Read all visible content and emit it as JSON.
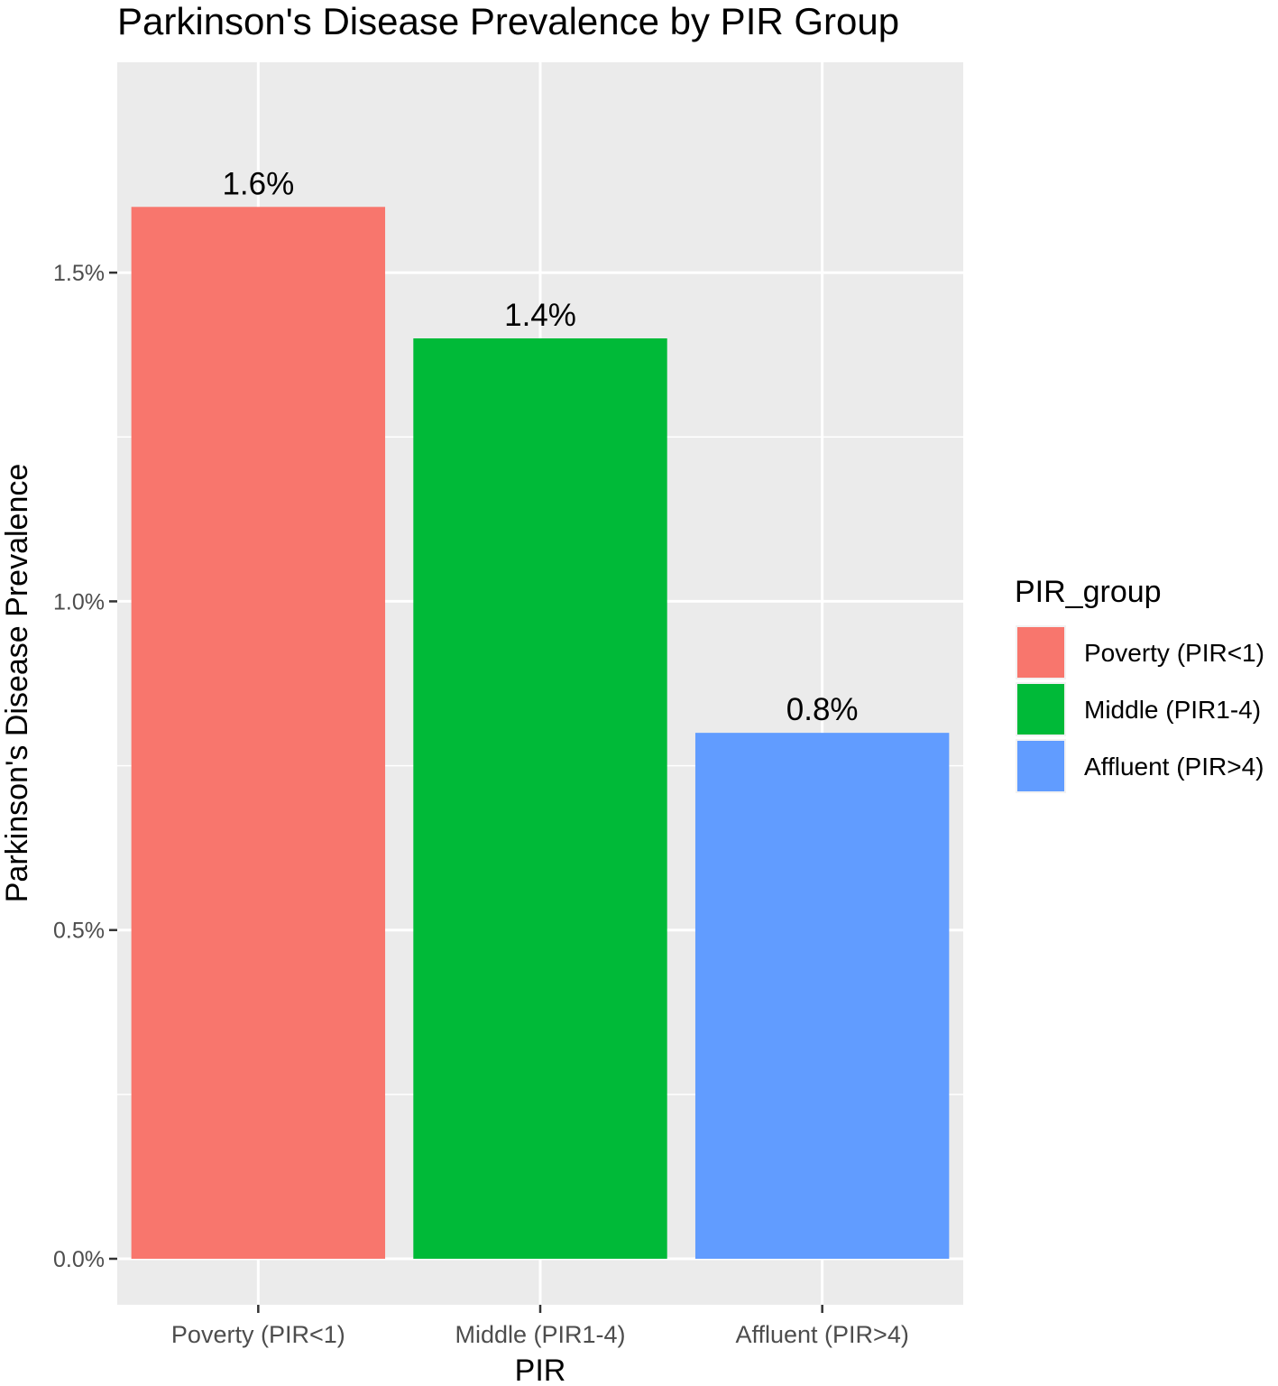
{
  "chart_data": {
    "type": "bar",
    "title": "Parkinson's Disease Prevalence by PIR Group",
    "xlabel": "PIR",
    "ylabel": "Parkinson's Disease Prevalence",
    "categories": [
      "Poverty (PIR<1)",
      "Middle (PIR1-4)",
      "Affluent (PIR>4)"
    ],
    "values": [
      1.6,
      1.4,
      0.8
    ],
    "value_unit": "%",
    "data_labels": [
      "1.6%",
      "1.4%",
      "0.8%"
    ],
    "colors": [
      "#F8766D",
      "#00BA38",
      "#619CFF"
    ],
    "y_ticks": [
      0.0,
      0.5,
      1.0,
      1.5
    ],
    "y_tick_labels": [
      "0.0%",
      "0.5%",
      "1.0%",
      "1.5%"
    ],
    "ylim": [
      -0.07,
      1.82
    ],
    "grid": true,
    "panel_background": "#EBEBEB",
    "legend": {
      "title": "PIR_group",
      "position": "right",
      "entries": [
        "Poverty (PIR<1)",
        "Middle (PIR1-4)",
        "Affluent (PIR>4)"
      ]
    }
  }
}
